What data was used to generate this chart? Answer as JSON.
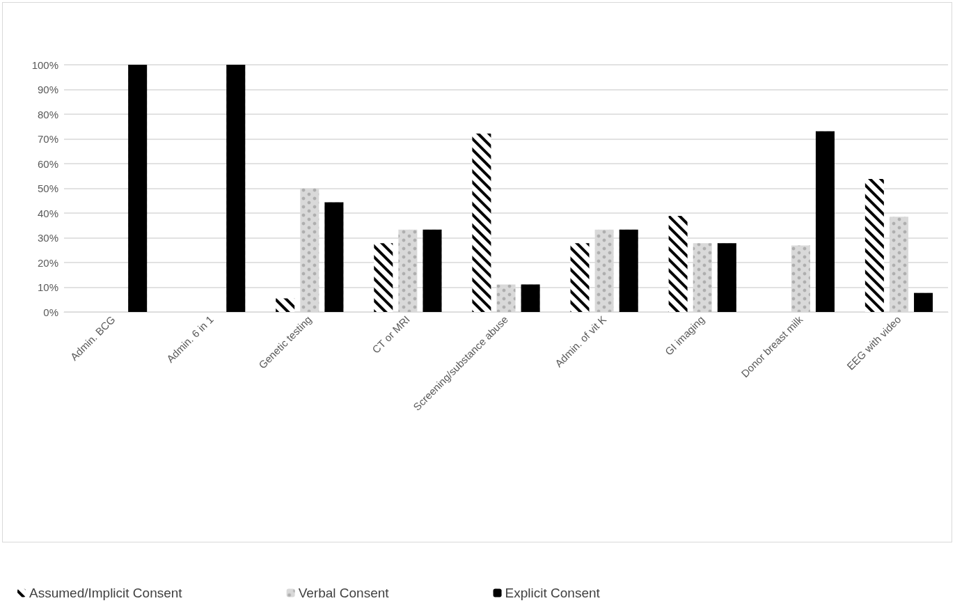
{
  "chart_data": {
    "type": "bar",
    "categories": [
      "Admin. BCG",
      "Admin. 6 in 1",
      "Genetic testing",
      "CT or MRI",
      "Screening/substance abuse",
      "Admin. of vit K",
      "GI imaging",
      "Donor breast milk",
      "EEG with video"
    ],
    "series": [
      {
        "name": "Assumed/Implicit Consent",
        "color": "#000000",
        "values": [
          0,
          0,
          5.5,
          27.8,
          72.2,
          27.8,
          38.9,
          0,
          53.8
        ]
      },
      {
        "name": "Verbal Consent",
        "color": "#d9d9d9",
        "values": [
          0,
          0,
          50,
          33.3,
          11.1,
          33.3,
          27.8,
          26.9,
          38.5
        ]
      },
      {
        "name": "Explicit Consent",
        "color": "#000000",
        "values": [
          100,
          100,
          44.4,
          33.3,
          11.1,
          33.3,
          27.8,
          73.1,
          7.7
        ]
      }
    ],
    "ylim": [
      0,
      100
    ],
    "yticks": [
      {
        "value": 0,
        "label": "0%"
      },
      {
        "value": 10,
        "label": "10%"
      },
      {
        "value": 20,
        "label": "20%"
      },
      {
        "value": 30,
        "label": "30%"
      },
      {
        "value": 40,
        "label": "40%"
      },
      {
        "value": 50,
        "label": "50%"
      },
      {
        "value": 60,
        "label": "60%"
      },
      {
        "value": 70,
        "label": "70%"
      },
      {
        "value": 80,
        "label": "80%"
      },
      {
        "value": 90,
        "label": "90%"
      },
      {
        "value": 100,
        "label": "100%"
      }
    ],
    "grid": "y",
    "legend": "bottom left"
  }
}
